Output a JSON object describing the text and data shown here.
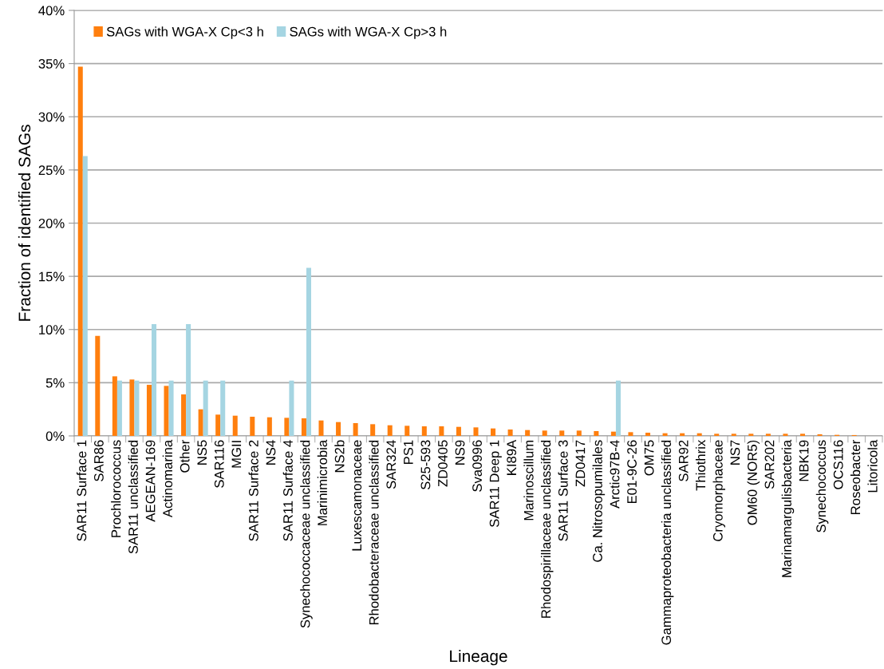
{
  "chart_data": {
    "type": "bar",
    "xlabel": "Lineage",
    "ylabel": "Fraction of identified SAGs",
    "categories": [
      "SAR11 Surface 1",
      "SAR86",
      "Prochlorococcus",
      "SAR11 unclassified",
      "AEGEAN-169",
      "Actinomarina",
      "Other",
      "NS5",
      "SAR116",
      "MGII",
      "SAR11 Surface 2",
      "NS4",
      "SAR11 Surface 4",
      "Synechococcaceae unclassified",
      "Marinimicrobia",
      "NS2b",
      "Luxescamonaceae",
      "Rhodobacteraceae unclassified",
      "SAR324",
      "PS1",
      "S25-593",
      "ZD0405",
      "NS9",
      "Sva0996",
      "SAR11 Deep 1",
      "KI89A",
      "Marinoscillum",
      "Rhodospirillaceae unclassified",
      "SAR11 Surface 3",
      "ZD0417",
      "Ca. Nitrosopumilales",
      "Arctic97B-4",
      "E01-9C-26",
      "OM75",
      "Gammaproteobacteria unclassified",
      "SAR92",
      "Thiothrix",
      "Cryomorphaceae",
      "NS7",
      "OM60 (NOR5)",
      "SAR202",
      "Marinamargulisbacteria",
      "NBK19",
      "Synechococcus",
      "OCS116",
      "Roseobacter",
      "Litoricola"
    ],
    "series": [
      {
        "name": "SAGs with WGA-X Cp<3 h",
        "color": "#ff7f0e",
        "values": [
          34.7,
          9.4,
          5.6,
          5.3,
          4.8,
          4.7,
          3.9,
          2.5,
          2.0,
          1.9,
          1.8,
          1.75,
          1.7,
          1.65,
          1.45,
          1.3,
          1.2,
          1.1,
          1.0,
          0.95,
          0.9,
          0.9,
          0.85,
          0.8,
          0.7,
          0.6,
          0.55,
          0.5,
          0.5,
          0.5,
          0.45,
          0.4,
          0.35,
          0.3,
          0.25,
          0.25,
          0.25,
          0.2,
          0.2,
          0.2,
          0.2,
          0.2,
          0.2,
          0.15,
          0.1,
          0.08,
          0
        ]
      },
      {
        "name": "SAGs with WGA-X Cp>3 h",
        "color": "#a5d5e2",
        "values": [
          26.3,
          null,
          5.2,
          5.2,
          10.5,
          5.2,
          10.5,
          5.2,
          5.2,
          null,
          null,
          null,
          5.2,
          15.8,
          null,
          null,
          null,
          null,
          null,
          null,
          null,
          null,
          null,
          null,
          null,
          null,
          null,
          null,
          null,
          null,
          null,
          5.2,
          null,
          null,
          null,
          null,
          null,
          null,
          null,
          null,
          null,
          null,
          null,
          null,
          null,
          null,
          null
        ]
      }
    ],
    "ylim": [
      0,
      40
    ],
    "yticks": [
      {
        "value": 0,
        "label": "0%"
      },
      {
        "value": 5,
        "label": "5%"
      },
      {
        "value": 10,
        "label": "10%"
      },
      {
        "value": 15,
        "label": "15%"
      },
      {
        "value": 20,
        "label": "20%"
      },
      {
        "value": 25,
        "label": "25%"
      },
      {
        "value": 30,
        "label": "30%"
      },
      {
        "value": 35,
        "label": "35%"
      },
      {
        "value": 40,
        "label": "40%"
      }
    ],
    "grid": "y",
    "legend": "top left"
  }
}
